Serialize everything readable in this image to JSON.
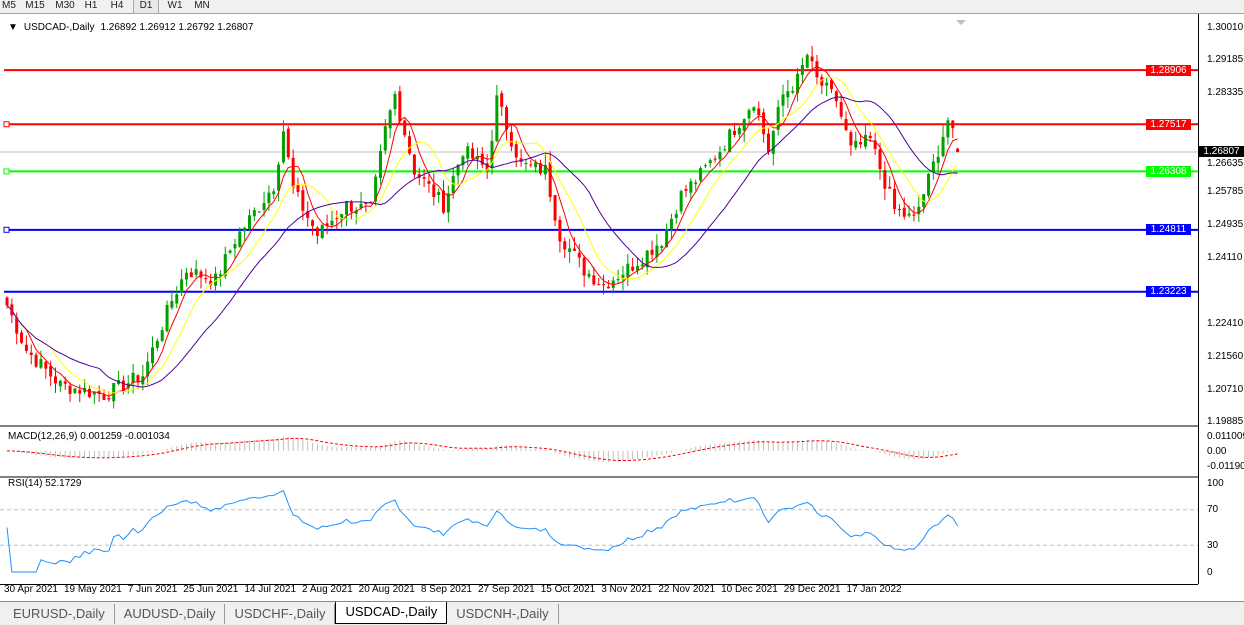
{
  "toolbar": {
    "timeframes": [
      "M5",
      "M15",
      "M30",
      "H1",
      "H4",
      "D1",
      "W1",
      "MN"
    ],
    "active": "D1"
  },
  "chart": {
    "symbol_label": "USDCAD-,Daily",
    "ohlc": "1.26892 1.26912 1.26792 1.26807",
    "current_price": "1.26807",
    "price_ticks": [
      "1.30010",
      "1.29185",
      "1.28335",
      "1.26635",
      "1.25785",
      "1.24935",
      "1.24110",
      "1.22410",
      "1.21560",
      "1.20710",
      "1.19885"
    ],
    "horizontal_lines": [
      {
        "price": "1.28906",
        "color": "#ff0000",
        "markers": false
      },
      {
        "price": "1.27517",
        "color": "#ff0000",
        "markers": true
      },
      {
        "price": "1.26308",
        "color": "#00ff00",
        "markers": true
      },
      {
        "price": "1.24811",
        "color": "#0000ff",
        "markers": true
      },
      {
        "price": "1.23223",
        "color": "#0000ff",
        "markers": false
      }
    ],
    "colors": {
      "bull": "#00a000",
      "bear": "#ff0000",
      "ma_fast": "#ff0000",
      "ma_mid": "#ffff00",
      "ma_slow": "#5000a0",
      "rsi": "#1e90ff",
      "macd_signal": "#ff0000",
      "macd_hist": "#c0c0c0"
    },
    "close_path": [
      [
        0,
        1.2288
      ],
      [
        4,
        1.2173
      ],
      [
        11,
        1.2083
      ],
      [
        20,
        1.2058
      ],
      [
        28,
        1.2109
      ],
      [
        34,
        1.2301
      ],
      [
        37,
        1.2378
      ],
      [
        43,
        1.2352
      ],
      [
        47,
        1.2455
      ],
      [
        55,
        1.2596
      ],
      [
        57,
        1.2737
      ],
      [
        59,
        1.2583
      ],
      [
        64,
        1.2468
      ],
      [
        70,
        1.2545
      ],
      [
        75,
        1.2532
      ],
      [
        78,
        1.2737
      ],
      [
        80,
        1.2827
      ],
      [
        84,
        1.2634
      ],
      [
        90,
        1.2545
      ],
      [
        94,
        1.2686
      ],
      [
        99,
        1.2634
      ],
      [
        101,
        1.2814
      ],
      [
        106,
        1.2647
      ],
      [
        111,
        1.2634
      ],
      [
        114,
        1.2468
      ],
      [
        119,
        1.2378
      ],
      [
        123,
        1.234
      ],
      [
        129,
        1.2391
      ],
      [
        135,
        1.2455
      ],
      [
        139,
        1.257
      ],
      [
        143,
        1.2622
      ],
      [
        147,
        1.2686
      ],
      [
        154,
        1.2814
      ],
      [
        157,
        1.2686
      ],
      [
        160,
        1.2827
      ],
      [
        163,
        1.2865
      ],
      [
        165,
        1.2929
      ],
      [
        167,
        1.2865
      ],
      [
        171,
        1.2814
      ],
      [
        174,
        1.2686
      ],
      [
        178,
        1.2711
      ],
      [
        183,
        1.2532
      ],
      [
        187,
        1.2506
      ],
      [
        190,
        1.2609
      ],
      [
        194,
        1.2763
      ],
      [
        196,
        1.2681
      ]
    ],
    "dates": [
      "30 Apr 2021",
      "19 May 2021",
      "7 Jun 2021",
      "25 Jun 2021",
      "14 Jul 2021",
      "2 Aug 2021",
      "20 Aug 2021",
      "8 Sep 2021",
      "27 Sep 2021",
      "15 Oct 2021",
      "3 Nov 2021",
      "22 Nov 2021",
      "10 Dec 2021",
      "29 Dec 2021",
      "17 Jan 2022"
    ]
  },
  "macd": {
    "label": "MACD(12,26,9) 0.001259 -0.001034",
    "ticks": [
      "0.011009",
      "0.00",
      "-0.01190"
    ]
  },
  "rsi": {
    "label": "RSI(14) 52.1729",
    "ticks": [
      "100",
      "70",
      "30",
      "0"
    ],
    "levels": [
      70,
      30
    ]
  },
  "tabs": [
    "EURUSD-,Daily",
    "AUDUSD-,Daily",
    "USDCHF-,Daily",
    "USDCAD-,Daily",
    "USDCNH-,Daily"
  ],
  "active_tab": "USDCAD-,Daily"
}
